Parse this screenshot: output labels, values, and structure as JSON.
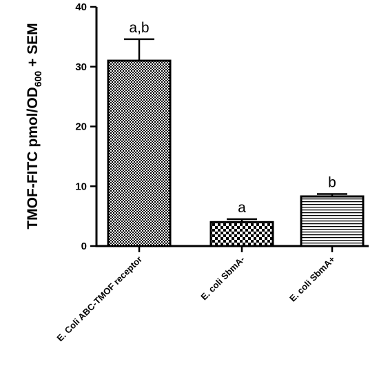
{
  "chart_data": {
    "type": "bar",
    "categories": [
      "E. Coli ABC-TMOF receptor",
      "E. coli SbmA-",
      "E. coli SbmA+"
    ],
    "values": [
      31.0,
      4.0,
      8.3
    ],
    "errors": [
      3.6,
      0.5,
      0.4
    ],
    "annotations": [
      "a,b",
      "a",
      "b"
    ],
    "patterns": [
      "fine-checker",
      "coarse-checker",
      "horizontal-lines"
    ],
    "ylabel": {
      "main": "TMOF-FITC pmol/OD",
      "sub": "600",
      "suffix": " + SEM"
    },
    "ylim": [
      0,
      40
    ],
    "yticks": [
      0,
      10,
      20,
      30,
      40
    ],
    "grid": false,
    "bar_color": "#000000",
    "background": "#ffffff"
  }
}
